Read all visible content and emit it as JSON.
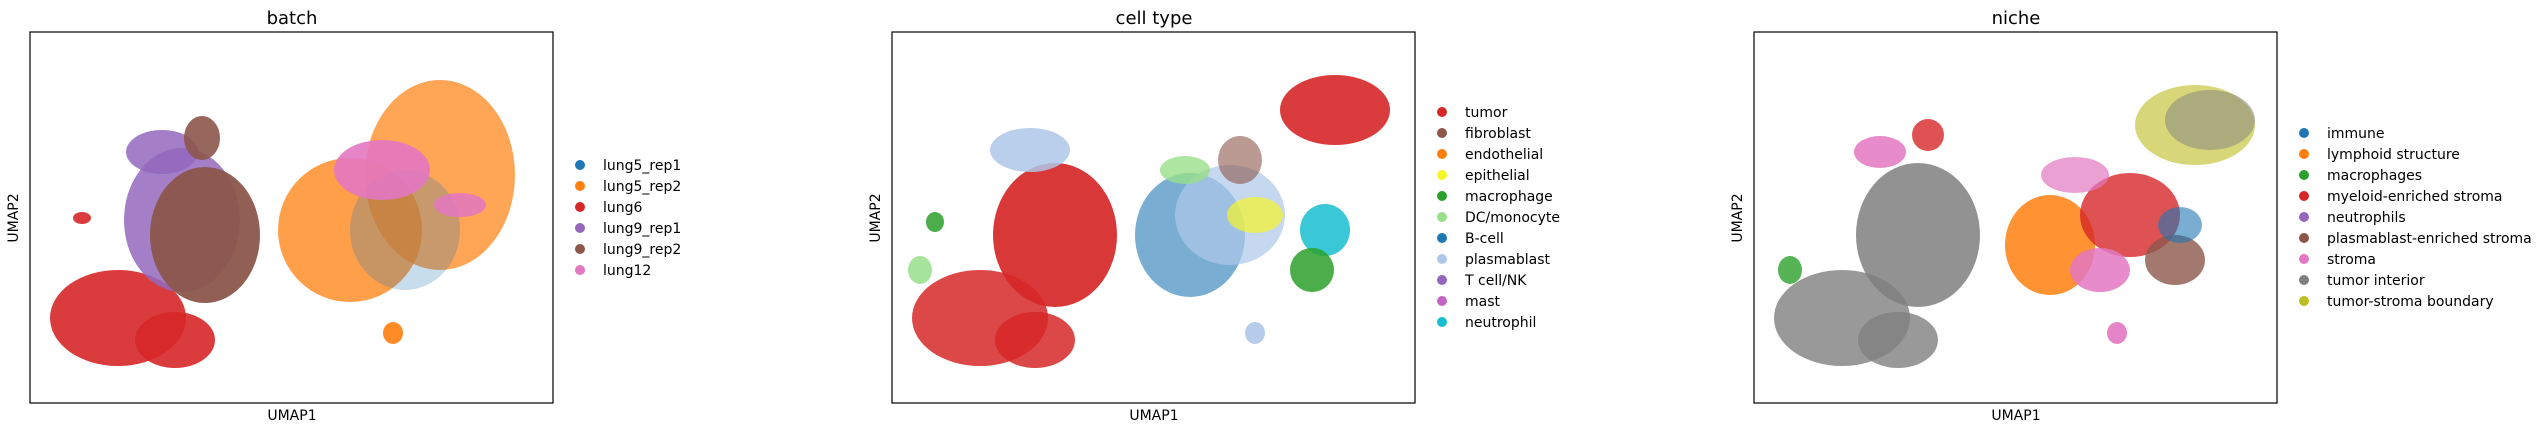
{
  "chart_data": [
    {
      "type": "scatter",
      "title": "batch",
      "xlabel": "UMAP1",
      "ylabel": "UMAP2",
      "grid": false,
      "legend_position": "right",
      "legend": [
        {
          "name": "lung5_rep1",
          "color": "#1f77b4"
        },
        {
          "name": "lung5_rep2",
          "color": "#ff7f0e"
        },
        {
          "name": "lung6",
          "color": "#d62728"
        },
        {
          "name": "lung9_rep1",
          "color": "#9467bd"
        },
        {
          "name": "lung9_rep2",
          "color": "#8c564b"
        },
        {
          "name": "lung12",
          "color": "#e377c2"
        }
      ]
    },
    {
      "type": "scatter",
      "title": "cell type",
      "xlabel": "UMAP1",
      "ylabel": "UMAP2",
      "grid": false,
      "legend_position": "right",
      "legend": [
        {
          "name": "tumor",
          "color": "#d62728"
        },
        {
          "name": "fibroblast",
          "color": "#8c564b"
        },
        {
          "name": "endothelial",
          "color": "#ff7f0e"
        },
        {
          "name": "epithelial",
          "color": "#f5f52a"
        },
        {
          "name": "macrophage",
          "color": "#2ca02c"
        },
        {
          "name": "DC/monocyte",
          "color": "#98df8a"
        },
        {
          "name": "B-cell",
          "color": "#1f77b4"
        },
        {
          "name": "plasmablast",
          "color": "#aec7e8"
        },
        {
          "name": "T cell/NK",
          "color": "#9467bd"
        },
        {
          "name": "mast",
          "color": "#c266c2"
        },
        {
          "name": "neutrophil",
          "color": "#17becf"
        }
      ]
    },
    {
      "type": "scatter",
      "title": "niche",
      "xlabel": "UMAP1",
      "ylabel": "UMAP2",
      "grid": false,
      "legend_position": "right",
      "legend": [
        {
          "name": "immune",
          "color": "#1f77b4"
        },
        {
          "name": "lymphoid structure",
          "color": "#ff7f0e"
        },
        {
          "name": "macrophages",
          "color": "#2ca02c"
        },
        {
          "name": "myeloid-enriched stroma",
          "color": "#d62728"
        },
        {
          "name": "neutrophils",
          "color": "#9467bd"
        },
        {
          "name": "plasmablast-enriched stroma",
          "color": "#8c564b"
        },
        {
          "name": "stroma",
          "color": "#e377c2"
        },
        {
          "name": "tumor interior",
          "color": "#7f7f7f"
        },
        {
          "name": "tumor-stroma boundary",
          "color": "#bcbd22"
        }
      ]
    }
  ]
}
